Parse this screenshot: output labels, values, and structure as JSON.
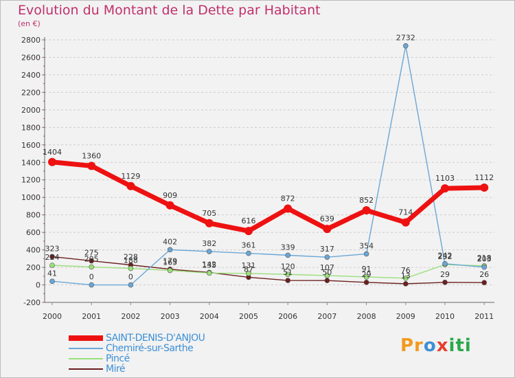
{
  "chart_data": {
    "type": "line",
    "title": "Evolution du Montant de la Dette par Habitant",
    "subtitle": "(en €)",
    "categories": [
      "2000",
      "2001",
      "2002",
      "2003",
      "2004",
      "2005",
      "2006",
      "2007",
      "2008",
      "2009",
      "2010",
      "2011"
    ],
    "y_ticks": [
      "-200",
      "0",
      "200",
      "400",
      "600",
      "800",
      "1000",
      "1200",
      "1400",
      "1600",
      "1800",
      "2000",
      "2200",
      "2400",
      "2600",
      "2800"
    ],
    "ylim": [
      -200,
      2800
    ],
    "grid": "horizontal-dashed",
    "legend_position": "bottom-left",
    "series": [
      {
        "name": "SAINT-DENIS-D'ANJOU",
        "color": "#ee1111",
        "values": [
          1404,
          1360,
          1129,
          909,
          705,
          616,
          872,
          639,
          852,
          714,
          1103,
          1112
        ],
        "labels": [
          "1404",
          "1360",
          "1129",
          "909",
          "705",
          "616",
          "872",
          "639",
          "852",
          "714",
          "1103",
          "1112"
        ]
      },
      {
        "name": "Chemiré-sur-Sarthe",
        "color": "#6aa6d6",
        "values": [
          41,
          0,
          0,
          402,
          382,
          361,
          339,
          317,
          354,
          2732,
          242,
          203
        ],
        "labels": [
          "41",
          "0",
          "0",
          "402",
          "382",
          "361",
          "339",
          "317",
          "354",
          "2732",
          "242",
          "203"
        ]
      },
      {
        "name": "Pincé",
        "color": "#99e07a",
        "values": [
          224,
          205,
          188,
          165,
          135,
          131,
          120,
          107,
          91,
          76,
          232,
          218
        ],
        "labels": [
          "224",
          "205",
          "188",
          "165",
          "135",
          "131",
          "120",
          "107",
          "91",
          "76",
          "232",
          "218"
        ]
      },
      {
        "name": "Miré",
        "color": "#6b1f1f",
        "values": [
          323,
          275,
          228,
          179,
          142,
          87,
          51,
          50,
          29,
          13,
          29,
          26
        ],
        "labels": [
          "323",
          "275",
          "228",
          "179",
          "142",
          "87",
          "51",
          "50",
          "29",
          "13",
          "29",
          "26"
        ]
      }
    ]
  },
  "brand": {
    "p": "Pr",
    "o": "o",
    "x": "x",
    "iti": "iti"
  }
}
